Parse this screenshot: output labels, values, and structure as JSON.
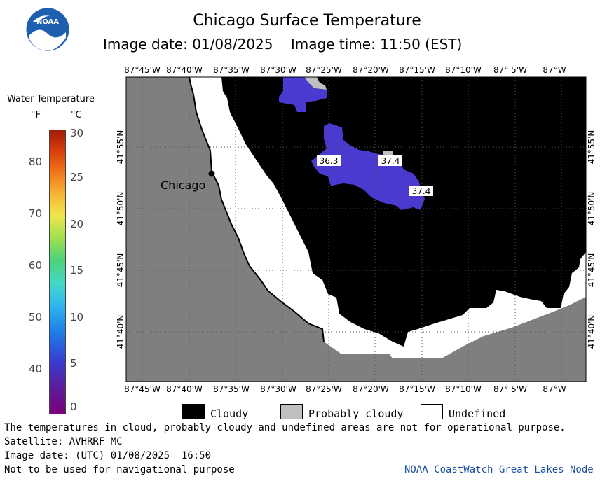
{
  "title": "Chicago Surface Temperature",
  "subtitle": "Image date: 01/08/2025    Image time: 11:50 (EST)",
  "logo_text": "NOAA",
  "legend": {
    "title": "Water Temperature",
    "unit_f": "°F",
    "unit_c": "°C",
    "f_ticks": [
      "80",
      "70",
      "60",
      "50",
      "40"
    ],
    "c_ticks": [
      "30",
      "25",
      "20",
      "15",
      "10",
      "5",
      "0"
    ]
  },
  "map": {
    "lon_labels": [
      "87°45'W",
      "87°40'W",
      "87°35'W",
      "87°30'W",
      "87°25'W",
      "87°20'W",
      "87°15'W",
      "87°10'W",
      "87° 5'W",
      "87°W"
    ],
    "lat_labels": [
      "41°55'N",
      "41°50'N",
      "41°45'N",
      "41°40'N"
    ],
    "city_label": "Chicago",
    "temperature_labels": [
      "36.3",
      "37.4",
      "37.4"
    ],
    "colors": {
      "land": "#7f7f7f",
      "cloudy": "#000000",
      "probably_cloudy": "#bfbfbf",
      "undefined": "#ffffff",
      "water_cold": "#4a3ad0"
    }
  },
  "key": {
    "cloudy": "Cloudy",
    "probably_cloudy": "Probably cloudy",
    "undefined": "Undefined"
  },
  "notes": {
    "disclaimer": "The temperatures in cloud, probably cloudy and undefined areas are not for operational purpose.",
    "satellite": "Satellite: AVHRRF_MC",
    "utc_date": "Image date: (UTC) 01/08/2025  16:50",
    "nav_warning": "Not to be used for navigational purpose",
    "credit": "NOAA CoastWatch Great Lakes Node"
  }
}
